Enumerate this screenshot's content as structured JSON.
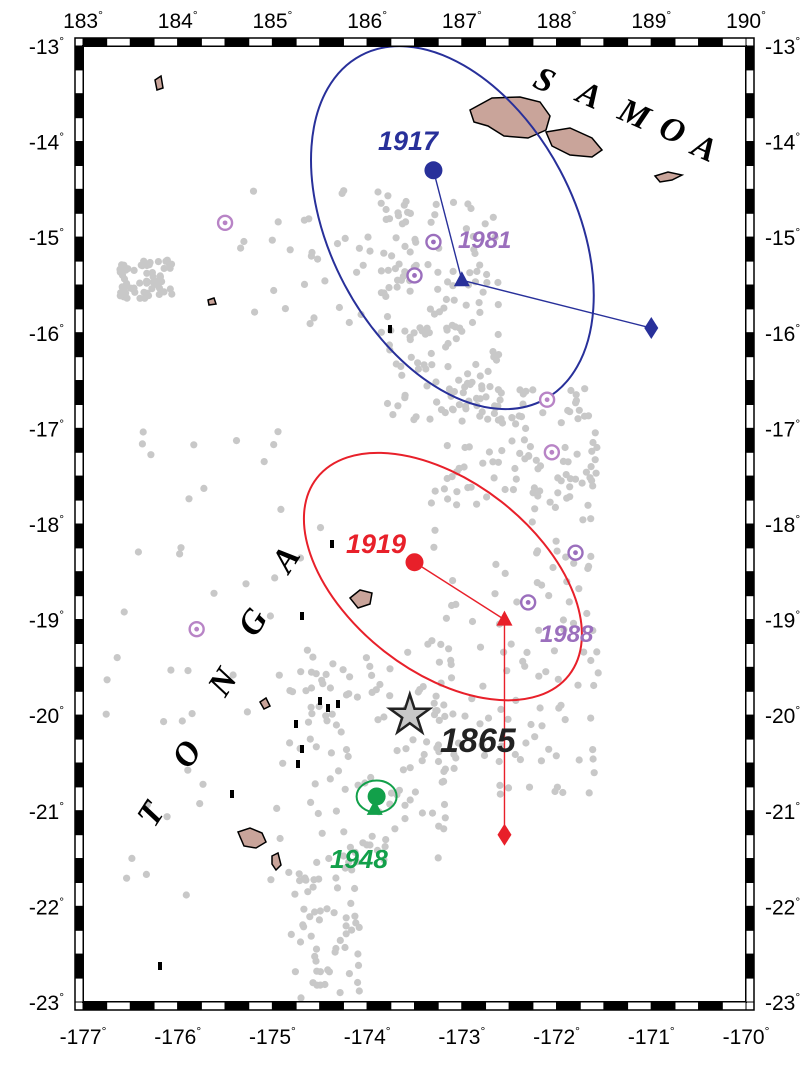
{
  "map": {
    "lon_range": [
      -177,
      -170
    ],
    "lat_range": [
      -23,
      -13
    ],
    "top_axis_labels": [
      "183",
      "184",
      "185",
      "186",
      "187",
      "188",
      "189",
      "190"
    ],
    "bottom_axis_labels": [
      "-177",
      "-176",
      "-175",
      "-174",
      "-173",
      "-172",
      "-171",
      "-170"
    ],
    "lat_axis_labels": [
      "-13",
      "-14",
      "-15",
      "-16",
      "-17",
      "-18",
      "-19",
      "-20",
      "-21",
      "-22",
      "-23"
    ],
    "degree_symbol": "°",
    "land_color": "#c9a49a",
    "seismicity_color": "#c8c8c8",
    "historic_color": "#b884c6",
    "regions": [
      {
        "id": "samoa",
        "letters": [
          "S",
          "A",
          "M",
          "O",
          "A"
        ]
      },
      {
        "id": "tonga",
        "letters": [
          "T",
          "O",
          "N",
          "G",
          "A"
        ]
      }
    ],
    "events": [
      {
        "id": "1917",
        "label": "1917",
        "color": "#28309a",
        "circle": [
          -173.3,
          -14.3
        ],
        "triangle": [
          -173.0,
          -15.45
        ],
        "diamond": [
          -171.0,
          -15.95
        ],
        "ellipse_center": [
          -173.1,
          -14.9
        ]
      },
      {
        "id": "1919",
        "label": "1919",
        "color": "#e8202a",
        "circle": [
          -173.5,
          -18.4
        ],
        "triangle": [
          -172.55,
          -19.0
        ],
        "diamond": [
          -172.55,
          -21.25
        ],
        "ellipse_center": [
          -173.2,
          -18.55
        ]
      },
      {
        "id": "1948",
        "label": "1948",
        "color": "#12a04a",
        "circle": [
          -173.9,
          -20.85
        ],
        "triangle": [
          -173.92,
          -20.98
        ],
        "ellipse_center": [
          -173.9,
          -20.85
        ]
      },
      {
        "id": "1865",
        "label": "1865",
        "color": "#222222",
        "star": [
          -173.55,
          -20.0
        ]
      },
      {
        "id": "1981",
        "label": "1981",
        "color": "#9b6fbd",
        "markers": [
          [
            -173.3,
            -15.05
          ],
          [
            -173.5,
            -15.4
          ]
        ]
      },
      {
        "id": "1988",
        "label": "1988",
        "color": "#9b6fbd",
        "markers": [
          [
            -172.3,
            -18.82
          ],
          [
            -171.8,
            -18.3
          ]
        ]
      }
    ],
    "other_historic_markers": [
      [
        -175.5,
        -14.85
      ],
      [
        -175.8,
        -19.1
      ],
      [
        -172.1,
        -16.7
      ],
      [
        -172.05,
        -17.25
      ]
    ]
  }
}
